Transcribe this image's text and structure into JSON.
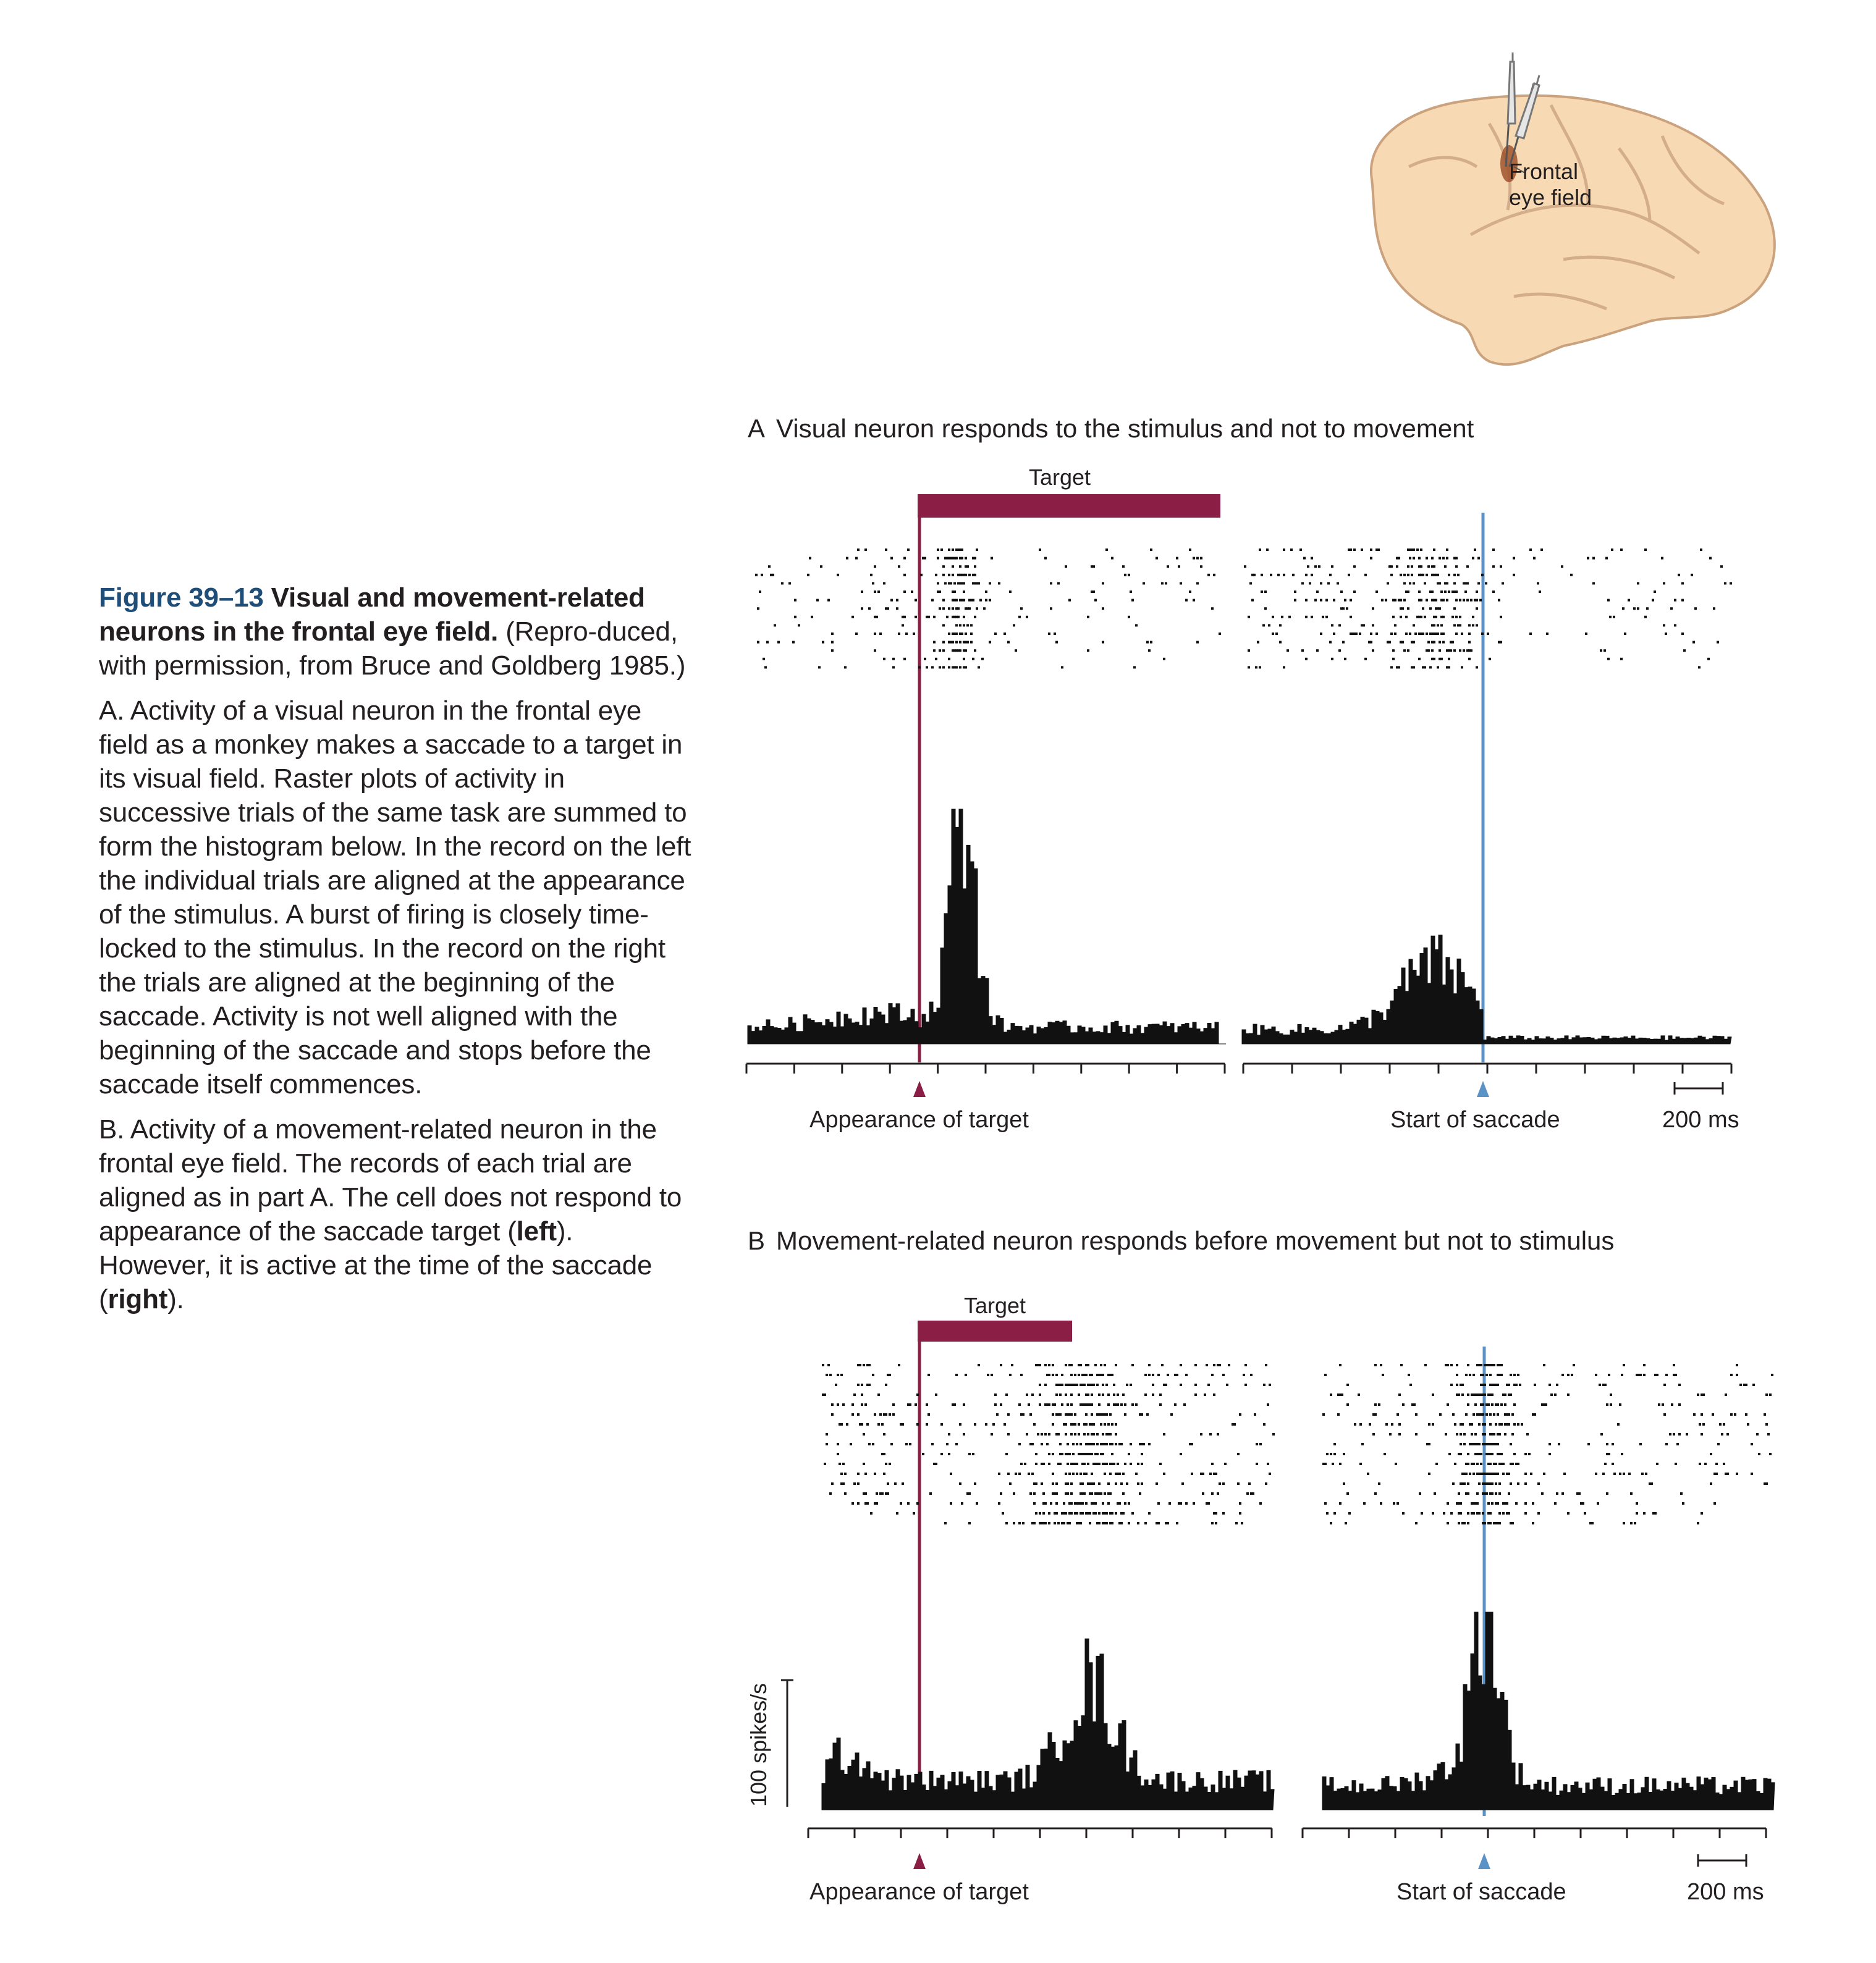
{
  "caption": {
    "figure_number": "Figure 39–13",
    "title": "Visual and movement-related neurons in the frontal eye field.",
    "credit": "(Repro-duced, with permission, from Bruce and Goldberg 1985.)",
    "part_a_letter": "A.",
    "part_a_text": "Activity of a visual neuron in the frontal eye field as a monkey makes a saccade to a target in its visual field. Raster plots of activity in successive trials of the same task are summed to form the histogram below. In the record on the left the individual trials are aligned at the appearance of the stimulus. A burst of firing is closely time-locked to the stimulus. In the record on the right the trials are aligned at the beginning of the saccade. Activity is not well aligned with the beginning of the saccade and stops before the saccade itself commences.",
    "part_b_letter": "B.",
    "part_b_text_1": "Activity of a movement-related neuron in the frontal eye field. The records of each trial are aligned as in part A. The cell does not respond to appearance of the saccade target (",
    "part_b_left": "left",
    "part_b_text_2": "). However, it is active at the time of the saccade (",
    "part_b_right": "right",
    "part_b_text_3": ")."
  },
  "brain": {
    "label_line1": "Frontal",
    "label_line2": "eye field"
  },
  "panel_a": {
    "letter": "A",
    "title": "Visual neuron responds to the stimulus and not to movement",
    "target_label": "Target",
    "left_marker_label": "Appearance of target",
    "right_marker_label": "Start of saccade",
    "scale_label": "200 ms"
  },
  "panel_b": {
    "letter": "B",
    "title": "Movement-related neuron responds before movement but not to stimulus",
    "target_label": "Target",
    "left_marker_label": "Appearance of target",
    "right_marker_label": "Start of saccade",
    "scale_label": "200 ms",
    "y_scale_label": "100 spikes/s"
  },
  "colors": {
    "target_bar": "#8b1e45",
    "saccade_line": "#5b93c7",
    "caption_figure_number": "#1f4e79",
    "brain_fill": "#f7d9b4",
    "brain_stroke": "#caa27e"
  },
  "chart_data": [
    {
      "type": "histogram",
      "panel": "A-left",
      "aligned_to": "Appearance of target",
      "burst_peak_ms_after_alignment": 100,
      "description_values": "peri-stimulus histogram: low baseline, sharp burst ~50-150 ms after target, then sparse"
    },
    {
      "type": "histogram",
      "panel": "A-right",
      "aligned_to": "Start of saccade",
      "activity_peak_ms_before_alignment": -250
    },
    {
      "type": "histogram",
      "panel": "B-left",
      "aligned_to": "Appearance of target",
      "activity_peak_ms_after_alignment": 650
    },
    {
      "type": "histogram",
      "panel": "B-right",
      "aligned_to": "Start of saccade",
      "activity_peak_ms_after_alignment": 0
    }
  ]
}
